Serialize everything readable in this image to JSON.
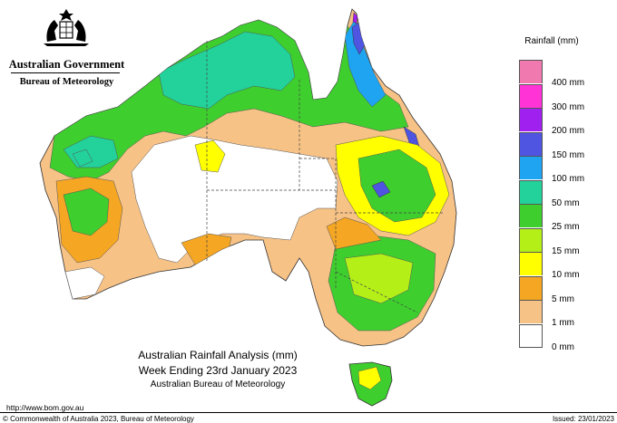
{
  "header": {
    "government": "Australian Government",
    "bureau": "Bureau of Meteorology"
  },
  "map": {
    "title": "Australian Rainfall Analysis (mm)",
    "period": "Week Ending 23rd January 2023",
    "source": "Australian Bureau of Meteorology"
  },
  "legend": {
    "title": "Rainfall (mm)",
    "classes": [
      {
        "label": "400 mm",
        "color": "#f07ab0"
      },
      {
        "label": "300 mm",
        "color": "#ff33d6"
      },
      {
        "label": "200 mm",
        "color": "#a020f0"
      },
      {
        "label": "150 mm",
        "color": "#4f55e0"
      },
      {
        "label": "100 mm",
        "color": "#1ea4f0"
      },
      {
        "label": "50 mm",
        "color": "#22d29a"
      },
      {
        "label": "25 mm",
        "color": "#3ecf2e"
      },
      {
        "label": "15 mm",
        "color": "#b4f018"
      },
      {
        "label": "10 mm",
        "color": "#ffff00"
      },
      {
        "label": "5 mm",
        "color": "#f5a623"
      },
      {
        "label": "1 mm",
        "color": "#f7c286"
      },
      {
        "label": "0 mm",
        "color": "#ffffff"
      }
    ]
  },
  "footer": {
    "url": "http://www.bom.gov.au",
    "copyright": "© Commonwealth of Australia 2023, Bureau of Meteorology",
    "issued": "Issued: 23/01/2023"
  }
}
